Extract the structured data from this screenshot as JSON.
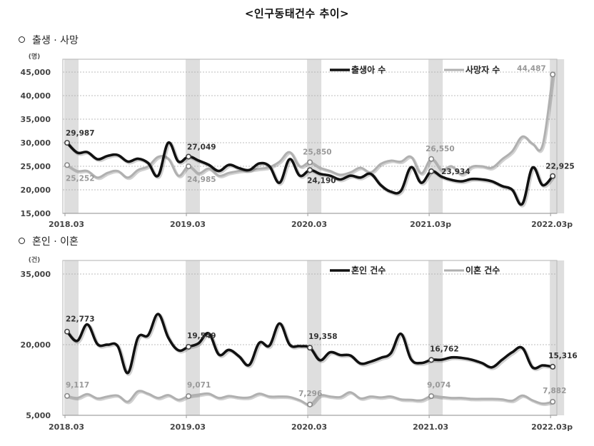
{
  "title": "<인구동태건수 추이>",
  "sections": {
    "birth_death": "출생 · 사망",
    "marriage_divorce": "혼인 · 이혼"
  },
  "colors": {
    "dark_series": "#111111",
    "light_series": "#b0b0b0",
    "band": "#dedede",
    "grid": "#999999"
  },
  "chart_data": [
    {
      "type": "line",
      "title": "출생 · 사망",
      "ylabel": "(명)",
      "xlabel": "",
      "ylim": [
        15000,
        45000
      ],
      "yticks": [
        "15,000",
        "20,000",
        "25,000",
        "30,000",
        "35,000",
        "40,000",
        "45,000"
      ],
      "ytick_values": [
        15000,
        20000,
        25000,
        30000,
        35000,
        40000,
        45000
      ],
      "xticks": [
        "2018.03",
        "2019.03",
        "2020.03",
        "2021.03p",
        "2022.03p"
      ],
      "grid": true,
      "legend_position": "top-right",
      "x_start": "2018.03",
      "x_end": "2022.03",
      "series": [
        {
          "name": "출생아 수",
          "color": "#111111",
          "values": [
            29987,
            27900,
            28000,
            26500,
            27200,
            27400,
            26000,
            26600,
            25700,
            23000,
            30000,
            26000,
            27049,
            26200,
            25300,
            24000,
            25300,
            24600,
            24200,
            25600,
            25000,
            21500,
            26500,
            23000,
            24190,
            23400,
            23000,
            22200,
            23000,
            22600,
            23400,
            21000,
            19600,
            19800,
            24800,
            21500,
            23934,
            22800,
            22100,
            21800,
            22300,
            22200,
            21800,
            20800,
            20000,
            17000,
            24700,
            21000,
            22925
          ],
          "labels": [
            {
              "index": 0,
              "text": "29,987"
            },
            {
              "index": 12,
              "text": "27,049"
            },
            {
              "index": 24,
              "text": "24,190"
            },
            {
              "index": 36,
              "text": "23,934"
            },
            {
              "index": 48,
              "text": "22,925"
            }
          ]
        },
        {
          "name": "사망자 수",
          "color": "#b0b0b0",
          "values": [
            25252,
            24000,
            24000,
            22600,
            23600,
            24000,
            22600,
            24200,
            25000,
            27000,
            26600,
            23000,
            24985,
            23500,
            24500,
            23000,
            23600,
            24000,
            24200,
            24500,
            24800,
            26000,
            28000,
            25000,
            25850,
            24700,
            24000,
            23200,
            23700,
            24700,
            23700,
            25500,
            26200,
            26000,
            27000,
            23500,
            26550,
            24200,
            25000,
            23300,
            24900,
            25000,
            24700,
            26500,
            28200,
            31300,
            29800,
            29500,
            44487
          ],
          "labels": [
            {
              "index": 0,
              "text": "25,252"
            },
            {
              "index": 12,
              "text": "24,985"
            },
            {
              "index": 24,
              "text": "25,850"
            },
            {
              "index": 36,
              "text": "26,550"
            },
            {
              "index": 48,
              "text": "44,487"
            }
          ]
        }
      ]
    },
    {
      "type": "line",
      "title": "혼인 · 이혼",
      "ylabel": "(건)",
      "xlabel": "",
      "ylim": [
        5000,
        35000
      ],
      "yticks": [
        "5,000",
        "20,000",
        "35,000"
      ],
      "ytick_values": [
        5000,
        20000,
        35000
      ],
      "xticks": [
        "2018.03",
        "2019.03",
        "2020.03",
        "2021.03",
        "2022.03p"
      ],
      "grid": true,
      "legend_position": "top-right",
      "x_start": "2018.03",
      "x_end": "2022.03",
      "series": [
        {
          "name": "혼인 건수",
          "color": "#111111",
          "values": [
            22773,
            20800,
            24300,
            20100,
            20000,
            19700,
            14000,
            21500,
            22000,
            26500,
            21500,
            18800,
            19549,
            20300,
            22400,
            17900,
            18900,
            17500,
            15700,
            20400,
            19800,
            24500,
            20000,
            19700,
            19358,
            16700,
            18400,
            17800,
            17700,
            16000,
            16400,
            17200,
            18200,
            22300,
            16900,
            16100,
            16762,
            16800,
            17300,
            17200,
            16800,
            16100,
            15200,
            16800,
            18400,
            19300,
            15200,
            15600,
            15316
          ],
          "labels": [
            {
              "index": 0,
              "text": "22,773"
            },
            {
              "index": 12,
              "text": "19,549"
            },
            {
              "index": 24,
              "text": "19,358"
            },
            {
              "index": 36,
              "text": "16,762"
            },
            {
              "index": 48,
              "text": "15,316"
            }
          ]
        },
        {
          "name": "이혼 건수",
          "color": "#b0b0b0",
          "values": [
            9117,
            8700,
            9500,
            8600,
            9000,
            9200,
            7900,
            10100,
            9600,
            8700,
            9300,
            8300,
            9071,
            9400,
            9600,
            8700,
            9100,
            8800,
            8800,
            9600,
            9000,
            9000,
            8900,
            8200,
            7296,
            9200,
            9000,
            8900,
            9900,
            8600,
            9000,
            8800,
            9000,
            8400,
            8300,
            8200,
            9074,
            8900,
            8700,
            8700,
            8500,
            8500,
            8500,
            8400,
            8100,
            9200,
            8200,
            7500,
            7882
          ],
          "labels": [
            {
              "index": 0,
              "text": "9,117"
            },
            {
              "index": 12,
              "text": "9,071"
            },
            {
              "index": 24,
              "text": "7,296"
            },
            {
              "index": 36,
              "text": "9,074"
            },
            {
              "index": 48,
              "text": "7,882"
            }
          ]
        }
      ]
    }
  ]
}
